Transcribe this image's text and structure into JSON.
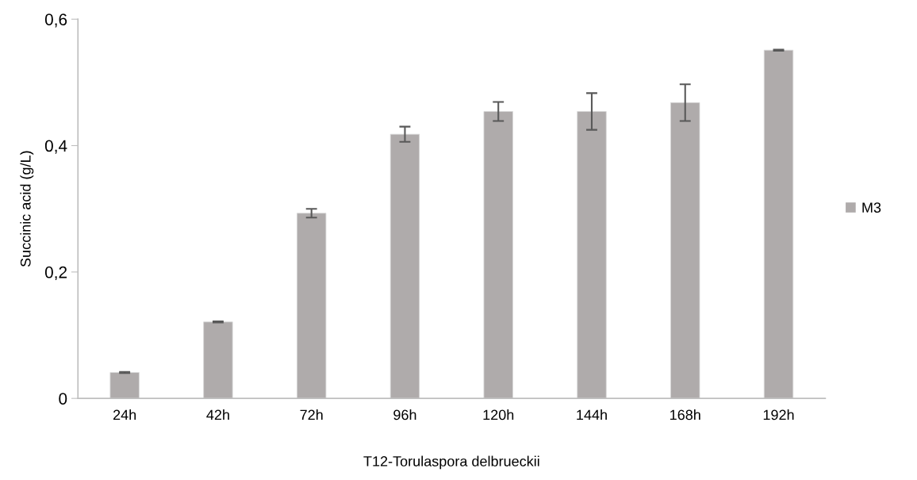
{
  "chart_data": {
    "type": "bar",
    "xlabel": "T12-Torulaspora delbrueckii",
    "ylabel": "Succinic acid (g/L)",
    "categories": [
      "24h",
      "42h",
      "72h",
      "96h",
      "120h",
      "144h",
      "168h",
      "192h"
    ],
    "series": [
      {
        "name": "M3",
        "color": "#afabab",
        "values": [
          0.041,
          0.121,
          0.293,
          0.418,
          0.454,
          0.454,
          0.468,
          0.551
        ],
        "errors": [
          0.001,
          0.001,
          0.007,
          0.012,
          0.015,
          0.029,
          0.029,
          0.001
        ]
      }
    ],
    "ylim": [
      0,
      0.6
    ],
    "yticks": [
      {
        "value": 0,
        "label": "0"
      },
      {
        "value": 0.2,
        "label": "0,2"
      },
      {
        "value": 0.4,
        "label": "0,4"
      },
      {
        "value": 0.6,
        "label": "0,6"
      }
    ],
    "grid": false,
    "legend": "right"
  }
}
